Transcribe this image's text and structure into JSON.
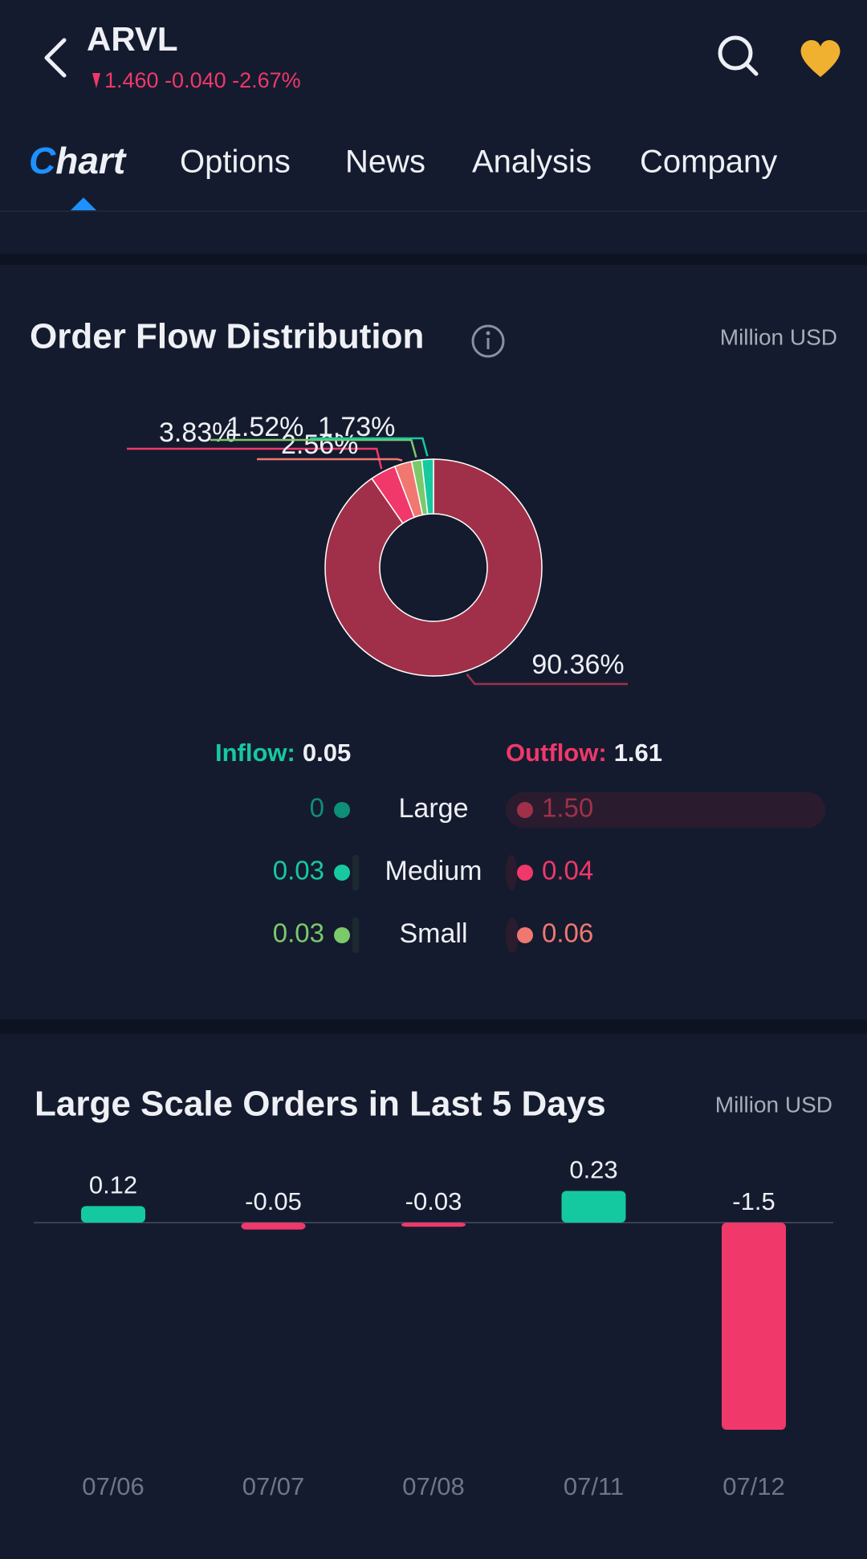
{
  "header": {
    "ticker": "ARVL",
    "quote": "1.460 -0.040 -2.67%"
  },
  "tabs": [
    "Chart",
    "Options",
    "News",
    "Analysis",
    "Company"
  ],
  "order_flow_summary": {
    "inflow_label": "Inflow:",
    "inflow_total": "0.05",
    "outflow_label": "Outflow:",
    "outflow_total": "1.61",
    "rows": [
      {
        "label": "Large",
        "inflow": "0",
        "outflow": "1.50"
      },
      {
        "label": "Medium",
        "inflow": "0.03",
        "outflow": "0.04"
      },
      {
        "label": "Small",
        "inflow": "0.03",
        "outflow": "0.06"
      }
    ],
    "inflow_colors": [
      "#0d8f78",
      "#16c9a0",
      "#7cc96a"
    ],
    "outflow_colors": [
      "#a0304a",
      "#f0386a",
      "#f07870"
    ]
  },
  "chart_data": [
    {
      "type": "pie",
      "title": "Order Flow Distribution",
      "unit": "Million USD",
      "donut": true,
      "values": [
        90.36,
        3.83,
        2.56,
        1.52,
        1.73
      ],
      "value_labels": [
        "90.36%",
        "3.83%",
        "2.56%",
        "1.52%",
        "1.73%"
      ],
      "colors": [
        "#a0304a",
        "#f0386a",
        "#f07870",
        "#7cc96a",
        "#16c9a0"
      ]
    },
    {
      "type": "bar",
      "title": "Large Scale Orders in Last 5 Days",
      "unit": "Million USD",
      "categories": [
        "07/06",
        "07/07",
        "07/08",
        "07/11",
        "07/12"
      ],
      "values": [
        0.12,
        -0.05,
        -0.03,
        0.23,
        -1.5
      ],
      "positive_color": "#14c9a0",
      "negative_color": "#f0386a"
    }
  ]
}
